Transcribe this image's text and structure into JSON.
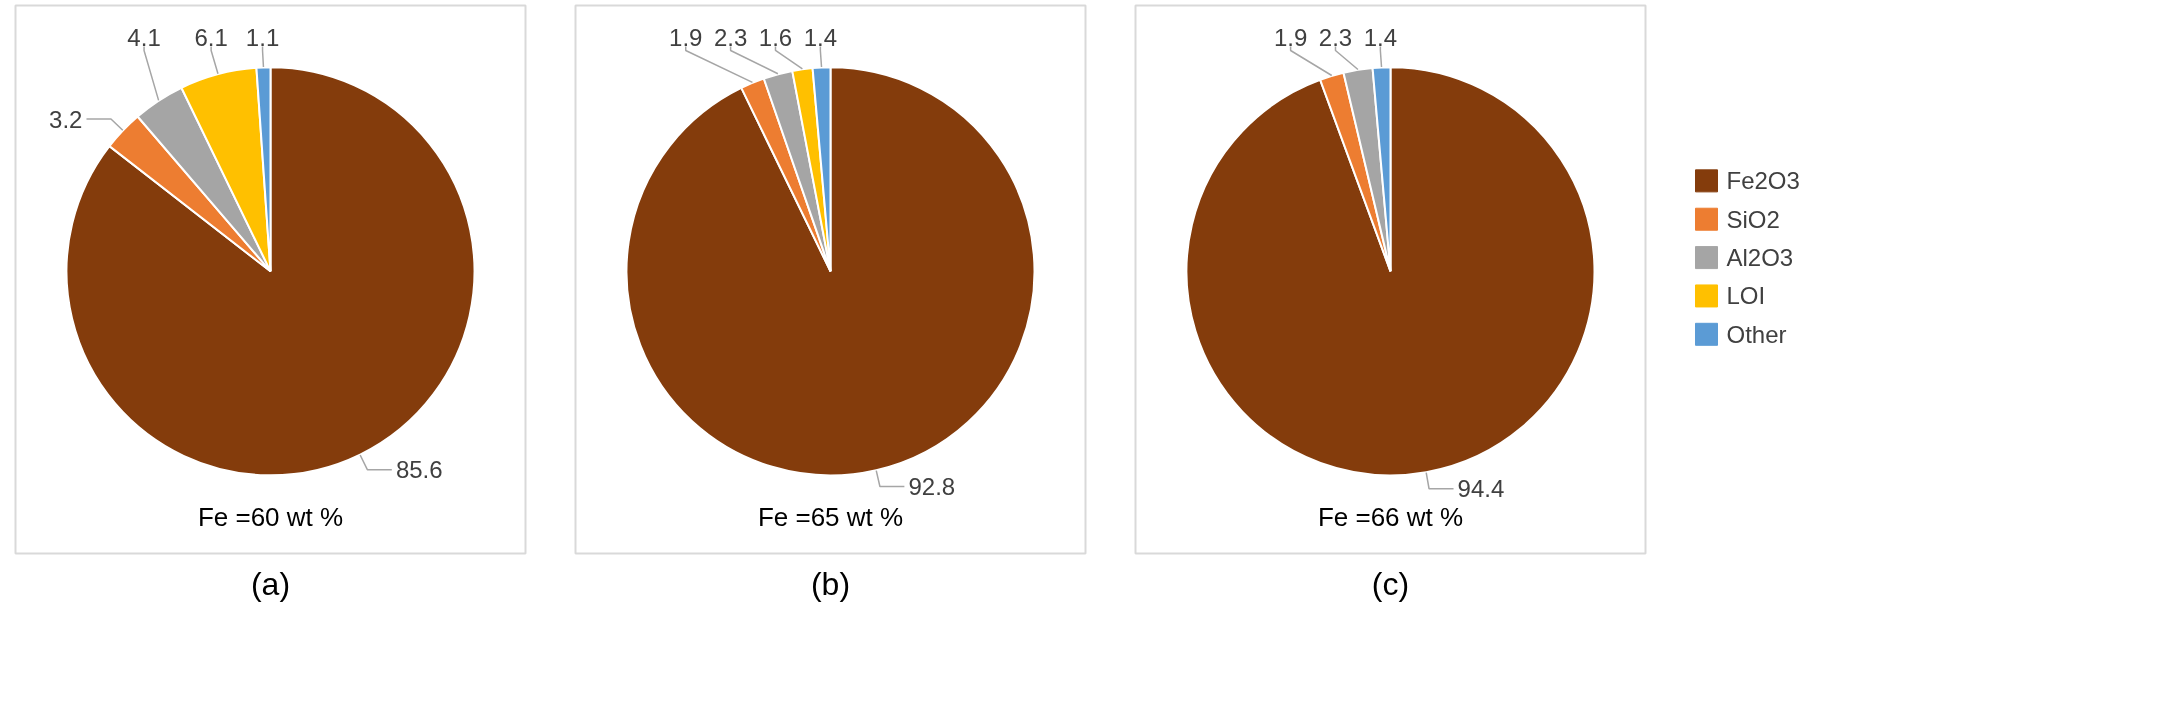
{
  "chart_data": [
    {
      "type": "pie",
      "title": "Fe =60 wt %",
      "annotations": [
        "(a)"
      ],
      "categories": [
        "Fe2O3",
        "SiO2",
        "Al2O3",
        "LOI",
        "Other"
      ],
      "values": [
        85.6,
        3.2,
        4.1,
        6.1,
        1.1
      ],
      "colors": [
        "#843c0c",
        "#ed7d31",
        "#a5a5a5",
        "#ffc000",
        "#5b9bd5"
      ],
      "data_labels": true,
      "legend": "right"
    },
    {
      "type": "pie",
      "title": "Fe =65 wt %",
      "annotations": [
        "(b)"
      ],
      "categories": [
        null,
        null,
        null,
        null,
        null
      ],
      "values": [
        92.8,
        1.9,
        2.3,
        1.6,
        1.4
      ],
      "colors": [
        "#843c0c",
        "#ed7d31",
        "#a5a5a5",
        "#ffc000",
        "#5b9bd5"
      ],
      "data_labels": true
    },
    {
      "type": "pie",
      "title": "Fe =66 wt %",
      "annotations": [
        "(c)"
      ],
      "categories": [
        null,
        null,
        null,
        null
      ],
      "values": [
        94.4,
        1.9,
        2.3,
        1.4
      ],
      "colors": [
        "#843c0c",
        "#ed7d31",
        "#a5a5a5",
        "#5b9bd5"
      ],
      "data_labels": true
    }
  ]
}
